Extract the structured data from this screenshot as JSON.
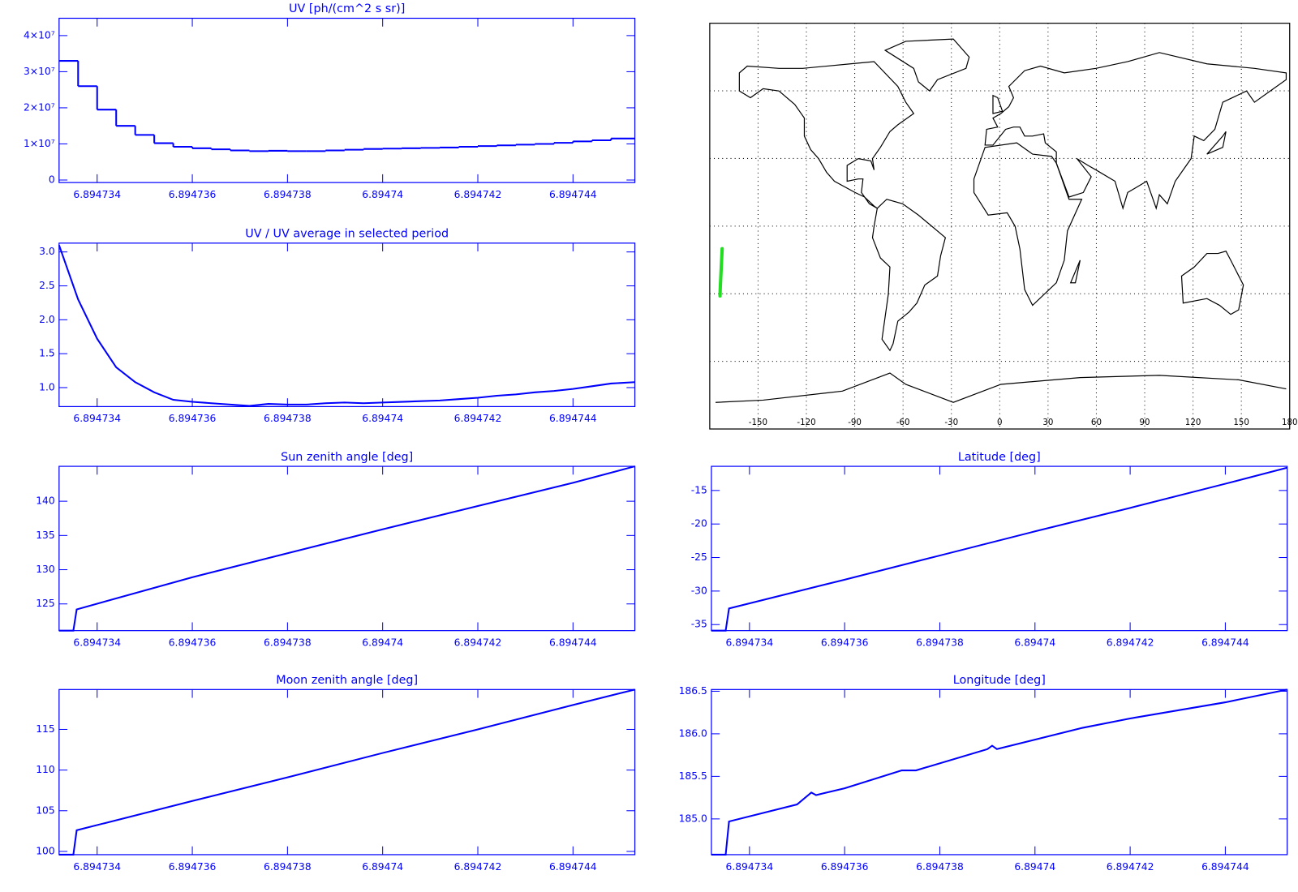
{
  "chart_data": [
    {
      "type": "step",
      "title": "UV [ph/(cm^2 s sr)]",
      "color": "#0000ff",
      "x": [
        6.8947332,
        6.8947336,
        6.894734,
        6.8947344,
        6.8947348,
        6.8947352,
        6.8947356,
        6.894736,
        6.8947364,
        6.8947368,
        6.8947372,
        6.8947376,
        6.894738,
        6.8947384,
        6.8947388,
        6.8947392,
        6.8947396,
        6.89474,
        6.8947404,
        6.8947408,
        6.8947412,
        6.8947416,
        6.894742,
        6.8947424,
        6.8947428,
        6.8947432,
        6.8947436,
        6.894744,
        6.8947444,
        6.8947448
      ],
      "values": [
        33000000,
        26000000,
        19500000,
        15000000,
        12500000,
        10200000,
        9200000,
        8800000,
        8500000,
        8200000,
        8000000,
        8100000,
        8000000,
        8000000,
        8200000,
        8400000,
        8600000,
        8700000,
        8800000,
        8900000,
        9000000,
        9200000,
        9400000,
        9600000,
        9800000,
        10000000,
        10300000,
        10700000,
        11000000,
        11500000
      ],
      "xlim": [
        6.8947332,
        6.8947453
      ],
      "ylim": [
        -700000,
        44800000
      ],
      "xticks": [
        6.894734,
        6.894736,
        6.894738,
        6.89474,
        6.894742,
        6.894744
      ],
      "yticks": [
        0,
        {
          "value": 10000000,
          "label": "1×10⁷"
        },
        {
          "value": 20000000,
          "label": "2×10⁷"
        },
        {
          "value": 30000000,
          "label": "3×10⁷"
        },
        {
          "value": 40000000,
          "label": "4×10⁷"
        }
      ]
    },
    {
      "type": "line",
      "title": "UV / UV average in selected period",
      "color": "#0000ff",
      "x": [
        6.8947332,
        6.8947336,
        6.894734,
        6.8947344,
        6.8947348,
        6.8947352,
        6.8947356,
        6.894736,
        6.8947364,
        6.8947368,
        6.8947372,
        6.8947376,
        6.894738,
        6.8947384,
        6.8947388,
        6.8947392,
        6.8947396,
        6.89474,
        6.8947404,
        6.8947408,
        6.8947412,
        6.8947416,
        6.894742,
        6.8947424,
        6.8947428,
        6.8947432,
        6.8947436,
        6.894744,
        6.8947444,
        6.8947448,
        6.8947453
      ],
      "values": [
        3.1,
        2.3,
        1.72,
        1.3,
        1.08,
        0.93,
        0.82,
        0.79,
        0.77,
        0.75,
        0.73,
        0.76,
        0.75,
        0.75,
        0.77,
        0.78,
        0.77,
        0.78,
        0.79,
        0.8,
        0.81,
        0.83,
        0.85,
        0.88,
        0.9,
        0.93,
        0.95,
        0.98,
        1.02,
        1.06,
        1.08
      ],
      "xlim": [
        6.8947332,
        6.8947453
      ],
      "ylim": [
        0.72,
        3.13
      ],
      "xticks": [
        6.894734,
        6.894736,
        6.894738,
        6.89474,
        6.894742,
        6.894744
      ],
      "yticks": [
        {
          "value": 1,
          "label": "1.0"
        },
        1.5,
        {
          "value": 2,
          "label": "2.0"
        },
        2.5,
        {
          "value": 3,
          "label": "3.0"
        }
      ]
    },
    {
      "type": "map",
      "color": "#000000",
      "xlim": [
        -180,
        180
      ],
      "ylim": [
        -90,
        90
      ],
      "grid": true,
      "xticks": [
        -150,
        -120,
        -90,
        -60,
        -30,
        0,
        30,
        60,
        90,
        120,
        150,
        180
      ],
      "series": [
        {
          "color": "#22dd22",
          "x": [
            -173.6,
            -173.5,
            -173.3,
            -173.1,
            -172.9,
            -172.7,
            -172.5,
            -172.3
          ],
          "values": [
            -31,
            -28,
            -25,
            -22,
            -19,
            -16,
            -13,
            -10
          ]
        }
      ]
    },
    {
      "type": "line",
      "title": "Sun zenith angle [deg]",
      "color": "#0000ff",
      "x": [
        6.8947332,
        6.8947335,
        6.89473357,
        6.894736,
        6.894738,
        6.89474,
        6.894742,
        6.894744,
        6.8947453
      ],
      "values": [
        121.1,
        121.1,
        124.2,
        128.9,
        132.4,
        135.9,
        139.3,
        142.7,
        145.1
      ],
      "xlim": [
        6.8947332,
        6.8947453
      ],
      "ylim": [
        121.1,
        145.1
      ],
      "xticks": [
        6.894734,
        6.894736,
        6.894738,
        6.89474,
        6.894742,
        6.894744
      ],
      "yticks": [
        125,
        130,
        135,
        140
      ]
    },
    {
      "type": "line",
      "title": "Latitude [deg]",
      "color": "#0000ff",
      "x": [
        6.8947332,
        6.8947335,
        6.89473357,
        6.894736,
        6.894738,
        6.89474,
        6.894742,
        6.894744,
        6.8947453
      ],
      "values": [
        -35.9,
        -35.9,
        -32.6,
        -28.3,
        -24.7,
        -21.1,
        -17.6,
        -14.0,
        -11.6
      ],
      "xlim": [
        6.8947332,
        6.8947453
      ],
      "ylim": [
        -35.9,
        -11.4
      ],
      "xticks": [
        6.894734,
        6.894736,
        6.894738,
        6.89474,
        6.894742,
        6.894744
      ],
      "yticks": [
        -35,
        -30,
        -25,
        -20,
        -15
      ]
    },
    {
      "type": "line",
      "title": "Moon zenith angle [deg]",
      "color": "#0000ff",
      "x": [
        6.8947332,
        6.8947335,
        6.89473357,
        6.894736,
        6.894738,
        6.89474,
        6.894742,
        6.894744,
        6.8947453
      ],
      "values": [
        99.6,
        99.6,
        102.6,
        106.2,
        109.1,
        112.1,
        115.0,
        118.0,
        119.9
      ],
      "xlim": [
        6.8947332,
        6.8947453
      ],
      "ylim": [
        99.6,
        119.9
      ],
      "xticks": [
        6.894734,
        6.894736,
        6.894738,
        6.89474,
        6.894742,
        6.894744
      ],
      "yticks": [
        100,
        105,
        110,
        115
      ]
    },
    {
      "type": "line",
      "title": "Longitude [deg]",
      "color": "#0000ff",
      "x": [
        6.8947332,
        6.8947335,
        6.89473357,
        6.894735,
        6.8947353,
        6.8947354,
        6.894736,
        6.8947372,
        6.8947375,
        6.894739,
        6.8947391,
        6.8947392,
        6.894741,
        6.894742,
        6.894744,
        6.8947453
      ],
      "values": [
        184.58,
        184.58,
        184.97,
        185.17,
        185.31,
        185.28,
        185.36,
        185.57,
        185.57,
        185.82,
        185.86,
        185.82,
        186.07,
        186.18,
        186.37,
        186.52
      ],
      "xlim": [
        6.8947332,
        6.8947453
      ],
      "ylim": [
        184.58,
        186.52
      ],
      "xticks": [
        6.894734,
        6.894736,
        6.894738,
        6.89474,
        6.894742,
        6.894744
      ],
      "yticks": [
        {
          "value": 185,
          "label": "185.0"
        },
        185.5,
        {
          "value": 186,
          "label": "186.0"
        },
        186.5
      ]
    }
  ]
}
